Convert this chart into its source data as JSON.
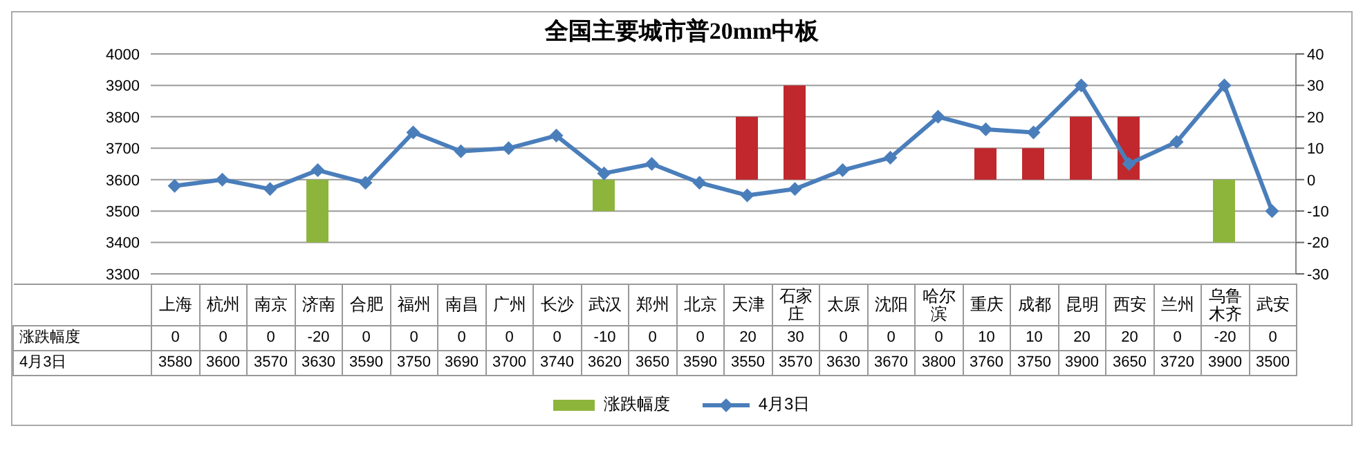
{
  "chart_data": {
    "type": "bar",
    "title": "全国主要城市普20mm中板",
    "categories": [
      "上海",
      "杭州",
      "南京",
      "济南",
      "合肥",
      "福州",
      "南昌",
      "广州",
      "长沙",
      "武汉",
      "郑州",
      "北京",
      "天津",
      "石家庄",
      "太原",
      "沈阳",
      "哈尔滨",
      "重庆",
      "成都",
      "昆明",
      "西安",
      "兰州",
      "乌鲁木齐",
      "武安"
    ],
    "series": [
      {
        "name": "涨跌幅度",
        "axis": "y2",
        "color": "#8db53c",
        "colors": [
          "#8db53c",
          "#8db53c",
          "#8db53c",
          "#8db53c",
          "#8db53c",
          "#8db53c",
          "#8db53c",
          "#8db53c",
          "#8db53c",
          "#8db53c",
          "#8db53c",
          "#8db53c",
          "#c0282d",
          "#c0282d",
          "#8db53c",
          "#8db53c",
          "#8db53c",
          "#c0282d",
          "#c0282d",
          "#c0282d",
          "#c0282d",
          "#8db53c",
          "#8db53c",
          "#8db53c"
        ],
        "values": [
          0,
          0,
          0,
          -20,
          0,
          0,
          0,
          0,
          0,
          -10,
          0,
          0,
          20,
          30,
          0,
          0,
          0,
          10,
          10,
          20,
          20,
          0,
          -20,
          0
        ]
      },
      {
        "type": "line",
        "name": "4月3日",
        "color": "#4a7ebb",
        "values": [
          3580,
          3600,
          3570,
          3630,
          3590,
          3750,
          3690,
          3700,
          3740,
          3620,
          3650,
          3590,
          3550,
          3570,
          3630,
          3670,
          3800,
          3760,
          3750,
          3900,
          3650,
          3720,
          3900,
          3500
        ]
      }
    ],
    "ylim": [
      3300,
      4000
    ],
    "yticks": [
      3300,
      3400,
      3500,
      3600,
      3700,
      3800,
      3900,
      4000
    ],
    "y2lim": [
      -30,
      40
    ],
    "y2ticks": [
      -30,
      -20,
      -10,
      0,
      10,
      20,
      30,
      40
    ],
    "grid": "y",
    "legend": "bottom",
    "marker": "diamond",
    "data_labels": true
  }
}
